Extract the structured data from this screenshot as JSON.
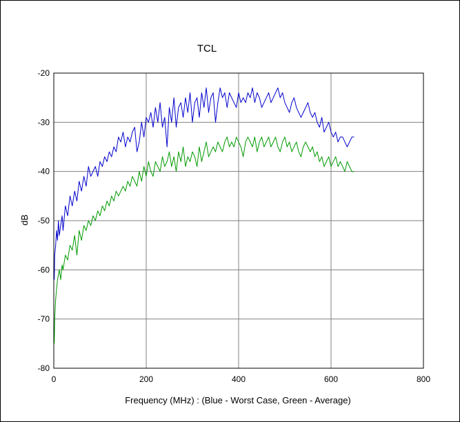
{
  "chart_data": {
    "type": "line",
    "title": "TCL",
    "xlabel": "Frequency (MHz) : (Blue - Worst Case, Green - Average)",
    "ylabel": "dB",
    "xlim": [
      0,
      800
    ],
    "ylim": [
      -80,
      -20
    ],
    "xticks": [
      "0",
      "200",
      "400",
      "600",
      "800"
    ],
    "yticks": [
      "-20",
      "-30",
      "-40",
      "-50",
      "-60",
      "-70",
      "-80"
    ],
    "grid": true,
    "legend": "none",
    "series": [
      {
        "color": "#0000cc",
        "x": [
          1,
          2,
          4,
          6,
          8,
          10,
          12,
          15,
          18,
          20,
          25,
          30,
          35,
          40,
          45,
          50,
          55,
          60,
          65,
          70,
          75,
          80,
          85,
          90,
          95,
          100,
          105,
          110,
          115,
          120,
          125,
          130,
          135,
          140,
          145,
          150,
          155,
          160,
          165,
          170,
          175,
          180,
          185,
          190,
          195,
          200,
          205,
          210,
          215,
          220,
          225,
          230,
          235,
          240,
          245,
          250,
          255,
          260,
          265,
          270,
          275,
          280,
          285,
          290,
          295,
          300,
          305,
          310,
          315,
          320,
          325,
          330,
          335,
          340,
          345,
          350,
          355,
          360,
          365,
          370,
          375,
          380,
          385,
          390,
          395,
          400,
          405,
          410,
          415,
          420,
          425,
          430,
          435,
          440,
          445,
          450,
          455,
          460,
          465,
          470,
          475,
          480,
          485,
          490,
          495,
          500,
          505,
          510,
          515,
          520,
          525,
          530,
          535,
          540,
          545,
          550,
          555,
          560,
          565,
          570,
          575,
          580,
          585,
          590,
          595,
          600,
          605,
          610,
          615,
          620,
          625,
          630,
          635,
          640,
          645,
          650
        ],
        "y": [
          -62,
          -57,
          -55,
          -52,
          -54,
          -50,
          -53,
          -51,
          -49,
          -52,
          -47,
          -49,
          -45,
          -47,
          -44,
          -46,
          -42,
          -44,
          -41,
          -43,
          -39,
          -41,
          -40,
          -39,
          -41,
          -38,
          -39,
          -37,
          -38,
          -36,
          -37,
          -35,
          -36,
          -33,
          -34,
          -32,
          -35,
          -33,
          -34,
          -32,
          -31,
          -36,
          -34,
          -30,
          -33,
          -29,
          -30,
          -28,
          -31,
          -27,
          -30,
          -26,
          -31,
          -29,
          -35,
          -27,
          -30,
          -25,
          -31,
          -27,
          -26,
          -29,
          -25,
          -28,
          -24,
          -30,
          -26,
          -25,
          -29,
          -24,
          -27,
          -23,
          -28,
          -25,
          -24,
          -30,
          -26,
          -23,
          -25,
          -24,
          -27,
          -24,
          -25,
          -26,
          -27,
          -24,
          -26,
          -25,
          -26,
          -24,
          -25,
          -23,
          -26,
          -24,
          -25,
          -27,
          -26,
          -25,
          -24,
          -26,
          -25,
          -24,
          -23,
          -25,
          -24,
          -26,
          -27,
          -28,
          -26,
          -25,
          -27,
          -28,
          -29,
          -28,
          -27,
          -26,
          -28,
          -29,
          -28,
          -30,
          -31,
          -29,
          -32,
          -31,
          -30,
          -32,
          -33,
          -32,
          -34,
          -33,
          -33,
          -34,
          -35,
          -34,
          -33,
          -33
        ]
      },
      {
        "color": "#009900",
        "x": [
          1,
          2,
          4,
          6,
          8,
          10,
          12,
          15,
          18,
          20,
          25,
          30,
          35,
          40,
          45,
          50,
          55,
          60,
          65,
          70,
          75,
          80,
          85,
          90,
          95,
          100,
          105,
          110,
          115,
          120,
          125,
          130,
          135,
          140,
          145,
          150,
          155,
          160,
          165,
          170,
          175,
          180,
          185,
          190,
          195,
          200,
          205,
          210,
          215,
          220,
          225,
          230,
          235,
          240,
          245,
          250,
          255,
          260,
          265,
          270,
          275,
          280,
          285,
          290,
          295,
          300,
          305,
          310,
          315,
          320,
          325,
          330,
          335,
          340,
          345,
          350,
          355,
          360,
          365,
          370,
          375,
          380,
          385,
          390,
          395,
          400,
          405,
          410,
          415,
          420,
          425,
          430,
          435,
          440,
          445,
          450,
          455,
          460,
          465,
          470,
          475,
          480,
          485,
          490,
          495,
          500,
          505,
          510,
          515,
          520,
          525,
          530,
          535,
          540,
          545,
          550,
          555,
          560,
          565,
          570,
          575,
          580,
          585,
          590,
          595,
          600,
          605,
          610,
          615,
          620,
          625,
          630,
          635,
          640,
          645,
          650
        ],
        "y": [
          -75,
          -70,
          -66,
          -64,
          -62,
          -61,
          -60,
          -62,
          -59,
          -60,
          -57,
          -58,
          -55,
          -56,
          -53,
          -57,
          -52,
          -54,
          -51,
          -52,
          -50,
          -51,
          -49,
          -50,
          -48,
          -49,
          -47,
          -48,
          -46,
          -47,
          -45,
          -46,
          -44,
          -45,
          -44,
          -43,
          -44,
          -42,
          -43,
          -41,
          -42,
          -43,
          -40,
          -42,
          -39,
          -41,
          -38,
          -40,
          -41,
          -38,
          -39,
          -40,
          -37,
          -39,
          -38,
          -36,
          -39,
          -37,
          -40,
          -36,
          -38,
          -35,
          -39,
          -37,
          -38,
          -36,
          -37,
          -39,
          -35,
          -38,
          -36,
          -34,
          -37,
          -36,
          -35,
          -36,
          -34,
          -35,
          -36,
          -34,
          -33,
          -35,
          -34,
          -35,
          -33,
          -34,
          -35,
          -37,
          -34,
          -33,
          -34,
          -35,
          -33,
          -36,
          -34,
          -33,
          -35,
          -34,
          -33,
          -35,
          -34,
          -33,
          -35,
          -36,
          -34,
          -33,
          -35,
          -34,
          -36,
          -35,
          -34,
          -36,
          -37,
          -35,
          -34,
          -35,
          -36,
          -35,
          -37,
          -36,
          -38,
          -37,
          -39,
          -38,
          -37,
          -39,
          -38,
          -37,
          -39,
          -38,
          -39,
          -40,
          -38,
          -39,
          -40,
          -40
        ]
      }
    ]
  }
}
